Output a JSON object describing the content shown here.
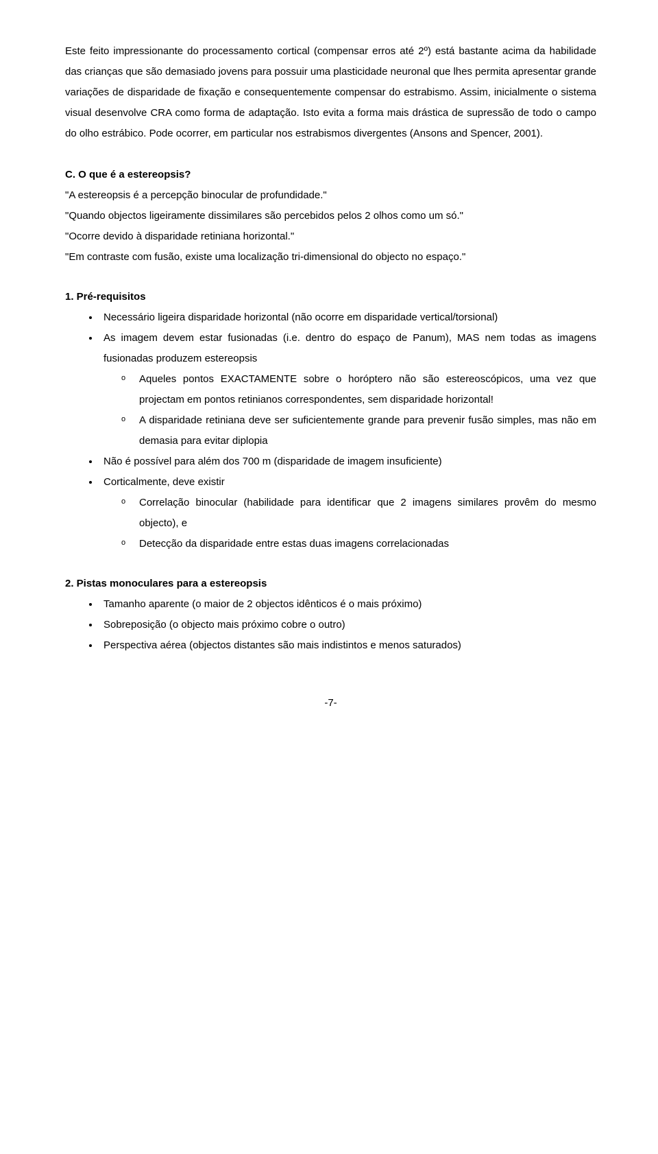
{
  "intro_paragraph": "Este feito impressionante do processamento cortical (compensar erros até 2º) está bastante acima da habilidade das crianças que são demasiado jovens para possuir uma plasticidade neuronal que lhes permita apresentar grande variações de disparidade de fixação e consequentemente compensar do estrabismo. Assim, inicialmente o sistema visual desenvolve CRA como forma de adaptação. Isto evita a forma mais drástica de supressão de todo o campo do olho estrábico. Pode ocorrer, em particular nos estrabismos divergentes (Ansons and Spencer, 2001).",
  "sectionC": {
    "heading": "C. O que é a estereopsis?",
    "quotes": {
      "q1": "\"A estereopsis é a percepção binocular de profundidade.\"",
      "q2": "\"Quando objectos ligeiramente dissimilares são percebidos pelos 2 olhos como um só.\"",
      "q3": "\"Ocorre devido à disparidade retiniana horizontal.\"",
      "q4": "\"Em contraste com fusão, existe uma localização tri-dimensional do objecto no espaço.\""
    }
  },
  "section1": {
    "heading": "1. Pré-requisitos",
    "items": {
      "i0": "Necessário ligeira disparidade horizontal (não ocorre em disparidade vertical/torsional)",
      "i1": "As imagem devem estar fusionadas (i.e. dentro do espaço de Panum), MAS nem todas as imagens fusionadas produzem estereopsis",
      "i1a": "Aqueles pontos EXACTAMENTE sobre o horóptero não são estereoscópicos, uma vez que projectam em pontos retinianos correspondentes, sem disparidade horizontal!",
      "i1b": "A disparidade retiniana deve ser suficientemente grande para prevenir fusão simples, mas não em demasia para evitar diplopia",
      "i2": "Não é possível para além dos 700 m (disparidade de imagem insuficiente)",
      "i3": "Corticalmente, deve existir",
      "i3a": "Correlação binocular (habilidade para identificar que 2 imagens similares provêm do mesmo objecto), e",
      "i3b": "Detecção da disparidade entre estas duas imagens correlacionadas"
    }
  },
  "section2": {
    "heading": "2. Pistas monoculares para a estereopsis",
    "items": {
      "i0": "Tamanho aparente (o maior de 2 objectos idênticos é o mais próximo)",
      "i1": "Sobreposição (o objecto mais próximo cobre o outro)",
      "i2": "Perspectiva aérea (objectos distantes são mais indistintos e menos saturados)"
    }
  },
  "page_number": "-7-"
}
